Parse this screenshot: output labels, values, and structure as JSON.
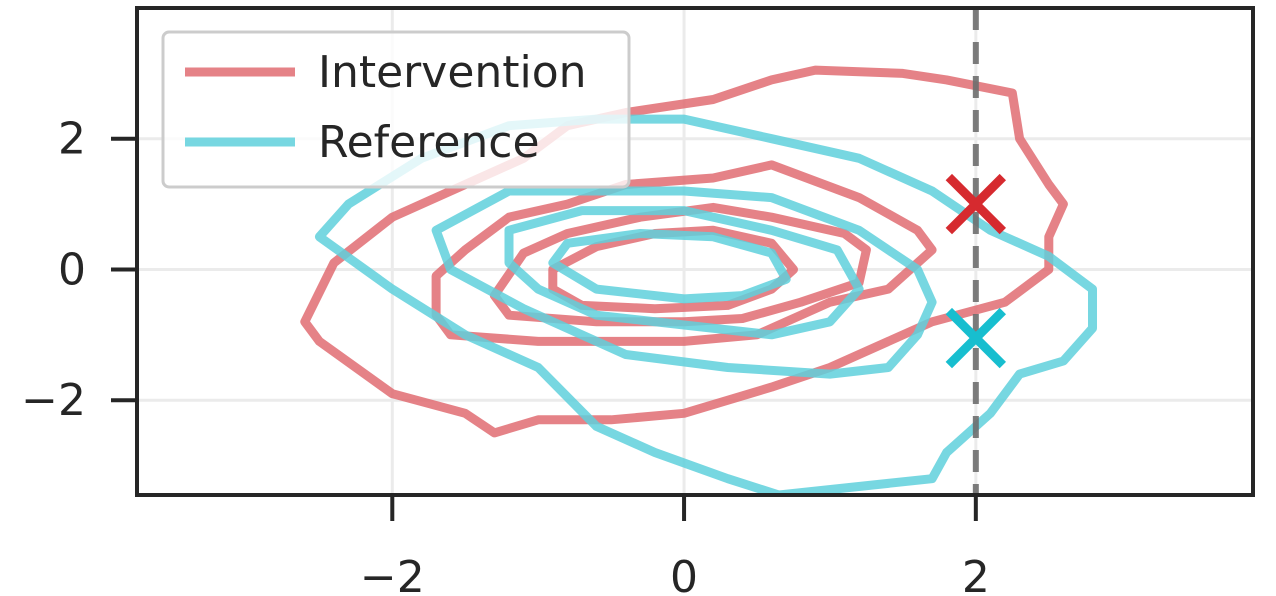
{
  "chart_data": {
    "type": "contour",
    "title": "",
    "xlabel": "",
    "ylabel": "",
    "xlim": [
      -3.75,
      3.9
    ],
    "ylim": [
      -3.45,
      4.0
    ],
    "grid": true,
    "xticks": [
      -2,
      0,
      2
    ],
    "yticks": [
      -2,
      0,
      2
    ],
    "xtick_labels": [
      "−2",
      "0",
      "2"
    ],
    "ytick_labels": [
      "−2",
      "0",
      "2"
    ],
    "legend": {
      "placement": "top-left",
      "entries": [
        "Intervention",
        "Reference"
      ]
    },
    "series": [
      {
        "name": "Intervention",
        "color": "#e06c72",
        "contours": [
          [
            [
              -2.6,
              -0.8
            ],
            [
              -2.5,
              -1.1
            ],
            [
              -2.0,
              -1.9
            ],
            [
              -1.5,
              -2.2
            ],
            [
              -1.3,
              -2.5
            ],
            [
              -1.0,
              -2.3
            ],
            [
              -0.5,
              -2.3
            ],
            [
              0.0,
              -2.2
            ],
            [
              0.6,
              -1.8
            ],
            [
              1.0,
              -1.5
            ],
            [
              1.4,
              -1.1
            ],
            [
              1.7,
              -0.8
            ],
            [
              2.2,
              -0.5
            ],
            [
              2.5,
              0.0
            ],
            [
              2.5,
              0.5
            ],
            [
              2.6,
              1.0
            ],
            [
              2.5,
              1.3
            ],
            [
              2.3,
              2.0
            ],
            [
              2.25,
              2.7
            ],
            [
              1.8,
              2.9
            ],
            [
              1.5,
              3.0
            ],
            [
              0.9,
              3.05
            ],
            [
              0.6,
              2.9
            ],
            [
              0.2,
              2.6
            ],
            [
              -0.4,
              2.4
            ],
            [
              -0.8,
              2.2
            ],
            [
              -1.1,
              1.7
            ],
            [
              -1.5,
              1.3
            ],
            [
              -2.0,
              0.8
            ],
            [
              -2.4,
              0.1
            ],
            [
              -2.6,
              -0.8
            ]
          ],
          [
            [
              -1.7,
              -0.7
            ],
            [
              -1.6,
              -1.0
            ],
            [
              -1.0,
              -1.1
            ],
            [
              -0.5,
              -1.1
            ],
            [
              0.0,
              -1.1
            ],
            [
              0.5,
              -1.0
            ],
            [
              1.0,
              -0.5
            ],
            [
              1.4,
              -0.3
            ],
            [
              1.7,
              0.3
            ],
            [
              1.6,
              0.6
            ],
            [
              1.2,
              1.1
            ],
            [
              0.6,
              1.6
            ],
            [
              0.2,
              1.4
            ],
            [
              -0.4,
              1.3
            ],
            [
              -0.8,
              1.0
            ],
            [
              -1.2,
              0.8
            ],
            [
              -1.5,
              0.3
            ],
            [
              -1.7,
              -0.1
            ],
            [
              -1.7,
              -0.7
            ]
          ],
          [
            [
              -1.3,
              -0.4
            ],
            [
              -1.2,
              -0.7
            ],
            [
              -0.6,
              -0.8
            ],
            [
              0.0,
              -0.8
            ],
            [
              0.4,
              -0.75
            ],
            [
              0.8,
              -0.5
            ],
            [
              1.2,
              -0.2
            ],
            [
              1.25,
              0.3
            ],
            [
              1.1,
              0.55
            ],
            [
              0.6,
              0.8
            ],
            [
              0.2,
              0.95
            ],
            [
              -0.3,
              0.8
            ],
            [
              -0.8,
              0.55
            ],
            [
              -1.1,
              0.25
            ],
            [
              -1.3,
              -0.4
            ]
          ],
          [
            [
              -0.9,
              -0.3
            ],
            [
              -0.7,
              -0.55
            ],
            [
              -0.2,
              -0.6
            ],
            [
              0.3,
              -0.55
            ],
            [
              0.6,
              -0.3
            ],
            [
              0.75,
              0.0
            ],
            [
              0.6,
              0.4
            ],
            [
              0.2,
              0.6
            ],
            [
              -0.2,
              0.55
            ],
            [
              -0.6,
              0.35
            ],
            [
              -0.9,
              0.0
            ],
            [
              -0.9,
              -0.3
            ]
          ]
        ]
      },
      {
        "name": "Reference",
        "color": "#5fd0dc",
        "contours": [
          [
            [
              -2.5,
              0.5
            ],
            [
              -2.0,
              -0.3
            ],
            [
              -1.5,
              -1.0
            ],
            [
              -1.0,
              -1.5
            ],
            [
              -0.6,
              -2.4
            ],
            [
              -0.2,
              -2.8
            ],
            [
              0.3,
              -3.2
            ],
            [
              0.65,
              -3.45
            ],
            [
              1.7,
              -3.2
            ],
            [
              1.8,
              -2.8
            ],
            [
              2.1,
              -2.2
            ],
            [
              2.3,
              -1.6
            ],
            [
              2.6,
              -1.4
            ],
            [
              2.8,
              -0.9
            ],
            [
              2.8,
              -0.3
            ],
            [
              2.5,
              0.2
            ],
            [
              2.1,
              0.6
            ],
            [
              1.7,
              1.2
            ],
            [
              1.2,
              1.7
            ],
            [
              0.6,
              2.0
            ],
            [
              0.0,
              2.3
            ],
            [
              -0.6,
              2.3
            ],
            [
              -1.2,
              2.2
            ],
            [
              -1.8,
              1.7
            ],
            [
              -2.3,
              1.0
            ],
            [
              -2.5,
              0.5
            ]
          ],
          [
            [
              -1.7,
              0.6
            ],
            [
              -1.6,
              0.0
            ],
            [
              -1.1,
              -0.6
            ],
            [
              -0.4,
              -1.3
            ],
            [
              0.3,
              -1.5
            ],
            [
              1.0,
              -1.6
            ],
            [
              1.4,
              -1.5
            ],
            [
              1.6,
              -1.0
            ],
            [
              1.7,
              -0.5
            ],
            [
              1.6,
              0.0
            ],
            [
              1.2,
              0.6
            ],
            [
              0.6,
              1.1
            ],
            [
              0.0,
              1.2
            ],
            [
              -0.6,
              1.2
            ],
            [
              -1.2,
              1.2
            ],
            [
              -1.7,
              0.6
            ]
          ],
          [
            [
              -1.2,
              0.1
            ],
            [
              -1.0,
              -0.3
            ],
            [
              -0.6,
              -0.7
            ],
            [
              0.0,
              -0.85
            ],
            [
              0.6,
              -1.0
            ],
            [
              1.0,
              -0.8
            ],
            [
              1.2,
              -0.3
            ],
            [
              1.05,
              0.3
            ],
            [
              0.6,
              0.6
            ],
            [
              0.0,
              0.9
            ],
            [
              -0.7,
              0.9
            ],
            [
              -1.2,
              0.6
            ],
            [
              -1.2,
              0.1
            ]
          ],
          [
            [
              -0.9,
              0.1
            ],
            [
              -0.6,
              -0.3
            ],
            [
              0.0,
              -0.45
            ],
            [
              0.4,
              -0.4
            ],
            [
              0.7,
              -0.15
            ],
            [
              0.6,
              0.25
            ],
            [
              0.2,
              0.5
            ],
            [
              -0.3,
              0.55
            ],
            [
              -0.8,
              0.4
            ],
            [
              -0.9,
              0.1
            ]
          ]
        ]
      }
    ],
    "markers": [
      {
        "x": 2.0,
        "y": 1.0,
        "shape": "x",
        "color": "#d62a2f"
      },
      {
        "x": 2.0,
        "y": -1.05,
        "shape": "x",
        "color": "#17becf"
      }
    ],
    "vline": {
      "x": 2.0,
      "style": "dashed",
      "color": "#6e6e6e"
    }
  }
}
